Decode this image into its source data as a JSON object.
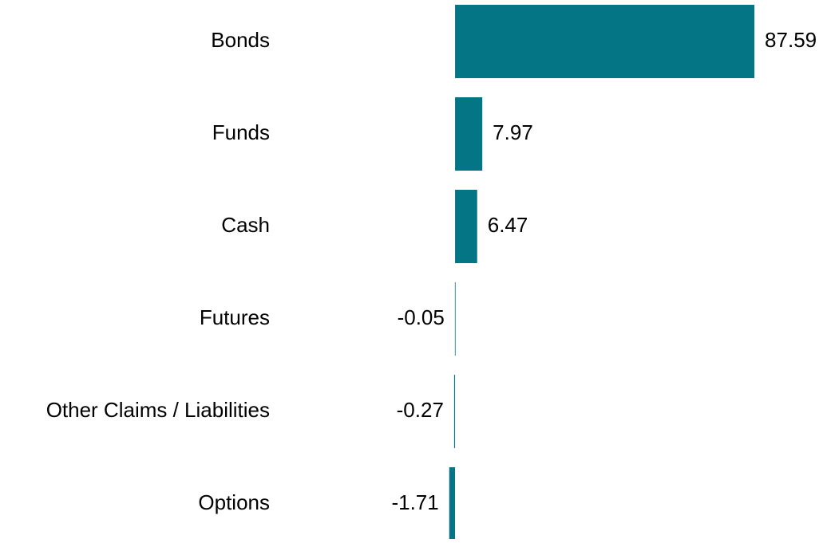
{
  "chart_data": {
    "type": "bar",
    "orientation": "horizontal",
    "categories": [
      "Bonds",
      "Funds",
      "Cash",
      "Futures",
      "Other Claims / Liabilities",
      "Options"
    ],
    "values": [
      87.59,
      7.97,
      6.47,
      -0.05,
      -0.27,
      -1.71
    ],
    "color": "#047585",
    "xlim": [
      -50,
      110
    ]
  }
}
